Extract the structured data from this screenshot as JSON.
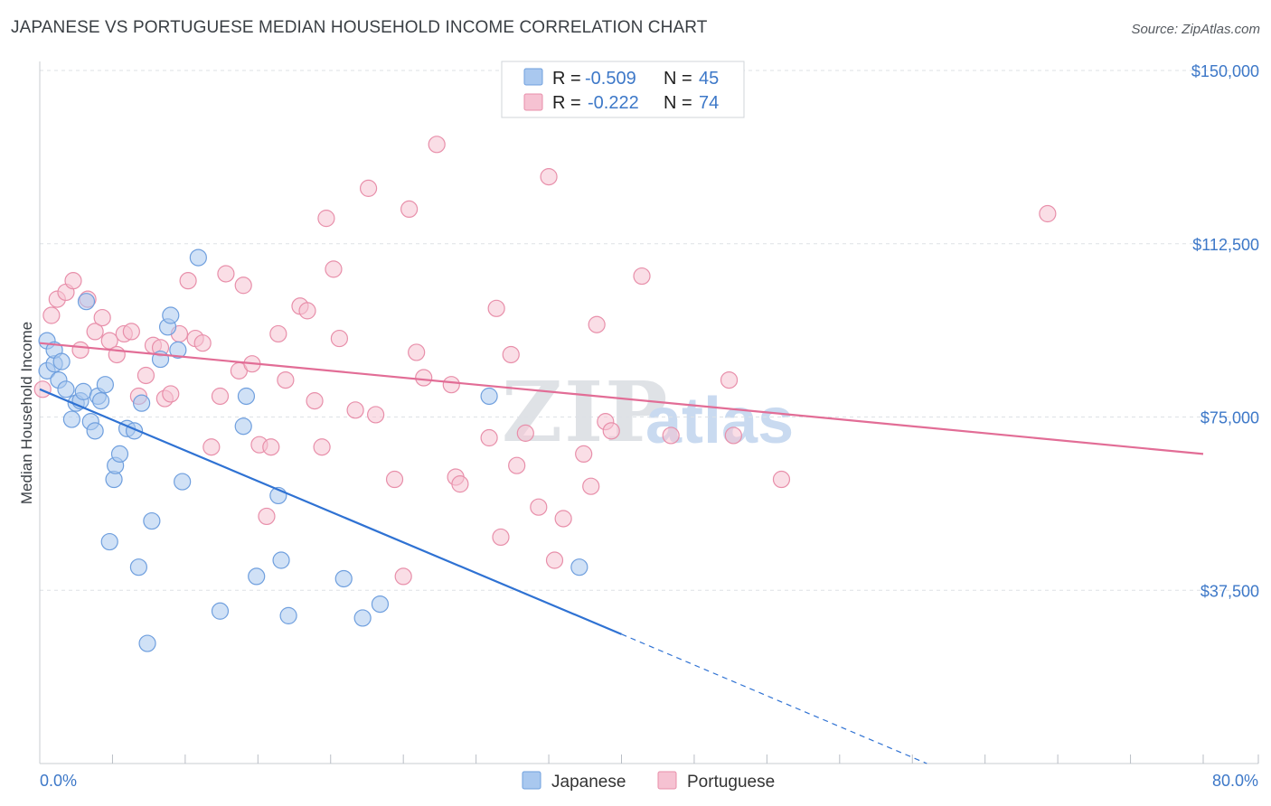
{
  "header": {
    "title": "JAPANESE VS PORTUGUESE MEDIAN HOUSEHOLD INCOME CORRELATION CHART",
    "source": "Source: ZipAtlas.com"
  },
  "watermark": {
    "zip": "ZIP",
    "atlas": "atlas"
  },
  "legend": {
    "rows": [
      {
        "r_label": "R =",
        "r_value": "-0.509",
        "n_label": "N =",
        "n_value": "45",
        "color": "#a9c8ef",
        "stroke": "#6f9fde"
      },
      {
        "r_label": "R =",
        "r_value": "-0.222",
        "n_label": "N =",
        "n_value": "74",
        "color": "#f6c2d2",
        "stroke": "#e88faa"
      }
    ]
  },
  "bottom_legend": [
    {
      "label": "Japanese",
      "color": "#a9c8ef",
      "stroke": "#6f9fde"
    },
    {
      "label": "Portuguese",
      "color": "#f6c2d2",
      "stroke": "#e88faa"
    }
  ],
  "chart_data": {
    "type": "scatter",
    "title": "JAPANESE VS PORTUGUESE MEDIAN HOUSEHOLD INCOME CORRELATION CHART",
    "xlabel": "",
    "ylabel": "Median Household Income",
    "xlim": [
      0,
      80
    ],
    "ylim": [
      0,
      155000
    ],
    "x_tick_labels": [
      "0.0%",
      "80.0%"
    ],
    "y_ticks": [
      37500,
      75000,
      112500,
      150000
    ],
    "y_tick_labels": [
      "$37,500",
      "$75,000",
      "$112,500",
      "$150,000"
    ],
    "grid": true,
    "legend_position": "top-center",
    "series": [
      {
        "name": "Japanese",
        "color": "#a9c8ef",
        "stroke": "#6f9fde",
        "trend_color": "#2f72d3",
        "trend": {
          "x0": 0,
          "y0": 81000,
          "x1": 40,
          "y1": 28000,
          "dashed_to_x": 61,
          "dashed_to_y": 0
        },
        "points": [
          [
            0.5,
            85000
          ],
          [
            0.5,
            91500
          ],
          [
            1.0,
            86500
          ],
          [
            1.0,
            89500
          ],
          [
            1.3,
            83000
          ],
          [
            1.5,
            87000
          ],
          [
            1.8,
            81000
          ],
          [
            2.2,
            74500
          ],
          [
            2.5,
            78000
          ],
          [
            2.8,
            78500
          ],
          [
            3.0,
            80500
          ],
          [
            3.2,
            100000
          ],
          [
            3.5,
            74000
          ],
          [
            3.8,
            72000
          ],
          [
            4.0,
            79500
          ],
          [
            4.2,
            78500
          ],
          [
            4.5,
            82000
          ],
          [
            4.8,
            48000
          ],
          [
            5.1,
            61500
          ],
          [
            5.2,
            64500
          ],
          [
            5.5,
            67000
          ],
          [
            6.0,
            72500
          ],
          [
            6.5,
            72000
          ],
          [
            6.8,
            42500
          ],
          [
            7.0,
            78000
          ],
          [
            7.4,
            26000
          ],
          [
            7.7,
            52500
          ],
          [
            8.3,
            87500
          ],
          [
            8.8,
            94500
          ],
          [
            9.0,
            97000
          ],
          [
            9.5,
            89500
          ],
          [
            9.8,
            61000
          ],
          [
            10.9,
            109500
          ],
          [
            12.4,
            33000
          ],
          [
            14.0,
            73000
          ],
          [
            14.2,
            79500
          ],
          [
            14.9,
            40500
          ],
          [
            16.4,
            58000
          ],
          [
            16.6,
            44000
          ],
          [
            17.1,
            32000
          ],
          [
            20.9,
            40000
          ],
          [
            22.2,
            31500
          ],
          [
            23.4,
            34500
          ],
          [
            30.9,
            79500
          ],
          [
            37.1,
            42500
          ]
        ]
      },
      {
        "name": "Portuguese",
        "color": "#f6c2d2",
        "stroke": "#e88faa",
        "trend_color": "#e26d96",
        "trend": {
          "x0": 0,
          "y0": 91000,
          "x1": 80,
          "y1": 67000
        },
        "points": [
          [
            0.2,
            81000
          ],
          [
            0.8,
            97000
          ],
          [
            1.2,
            100500
          ],
          [
            1.8,
            102000
          ],
          [
            2.3,
            104500
          ],
          [
            2.8,
            89500
          ],
          [
            3.3,
            100500
          ],
          [
            3.8,
            93500
          ],
          [
            4.3,
            96500
          ],
          [
            4.8,
            91500
          ],
          [
            5.3,
            88500
          ],
          [
            5.8,
            93000
          ],
          [
            6.3,
            93500
          ],
          [
            6.8,
            79500
          ],
          [
            7.3,
            84000
          ],
          [
            7.8,
            90500
          ],
          [
            8.3,
            90000
          ],
          [
            8.6,
            79000
          ],
          [
            9.0,
            80000
          ],
          [
            9.6,
            93000
          ],
          [
            10.2,
            104500
          ],
          [
            10.7,
            92000
          ],
          [
            11.2,
            91000
          ],
          [
            11.8,
            68500
          ],
          [
            12.4,
            79500
          ],
          [
            12.8,
            106000
          ],
          [
            13.7,
            85000
          ],
          [
            14.0,
            103500
          ],
          [
            14.6,
            86500
          ],
          [
            15.1,
            69000
          ],
          [
            15.6,
            53500
          ],
          [
            15.9,
            68500
          ],
          [
            16.4,
            93000
          ],
          [
            16.9,
            83000
          ],
          [
            17.9,
            99000
          ],
          [
            18.4,
            98000
          ],
          [
            18.9,
            78500
          ],
          [
            19.4,
            68500
          ],
          [
            19.7,
            118000
          ],
          [
            20.2,
            107000
          ],
          [
            20.6,
            92000
          ],
          [
            21.7,
            76500
          ],
          [
            22.6,
            124500
          ],
          [
            23.1,
            75500
          ],
          [
            24.4,
            61500
          ],
          [
            25.0,
            40500
          ],
          [
            25.4,
            120000
          ],
          [
            25.9,
            89000
          ],
          [
            26.4,
            83500
          ],
          [
            27.3,
            134000
          ],
          [
            28.3,
            82000
          ],
          [
            28.6,
            62000
          ],
          [
            28.9,
            60500
          ],
          [
            30.9,
            70500
          ],
          [
            31.4,
            98500
          ],
          [
            31.7,
            49000
          ],
          [
            32.4,
            88500
          ],
          [
            32.8,
            64500
          ],
          [
            33.4,
            71500
          ],
          [
            34.3,
            55500
          ],
          [
            35.0,
            127000
          ],
          [
            35.4,
            44000
          ],
          [
            36.0,
            53000
          ],
          [
            37.4,
            67000
          ],
          [
            37.9,
            60000
          ],
          [
            38.3,
            95000
          ],
          [
            38.9,
            74000
          ],
          [
            39.3,
            72000
          ],
          [
            41.4,
            105500
          ],
          [
            43.4,
            71000
          ],
          [
            47.4,
            83000
          ],
          [
            47.7,
            71000
          ],
          [
            51.0,
            61500
          ],
          [
            69.3,
            119000
          ]
        ]
      }
    ]
  }
}
